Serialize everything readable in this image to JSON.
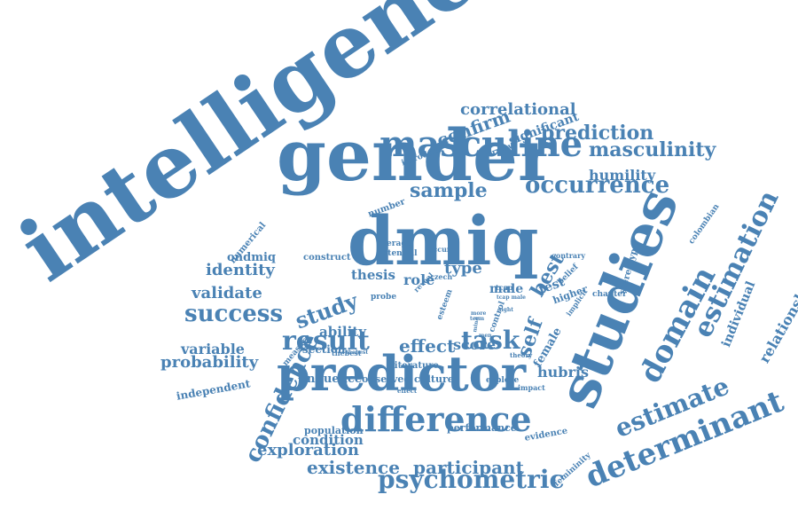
{
  "color": "#4a82b4",
  "words": [
    "intelligence",
    "gender",
    "dmiq",
    "predictor",
    "studies",
    "masculine",
    "difference",
    "determinant",
    "domain",
    "estimation",
    "psychometric",
    "occurrence",
    "sample",
    "result",
    "task",
    "estimate",
    "confidence",
    "success",
    "study",
    "prediction",
    "masculinity",
    "confirm",
    "correlational",
    "humility",
    "existence",
    "participant",
    "exploration",
    "probability",
    "variable",
    "validate",
    "identity",
    "ability",
    "effect",
    "self",
    "type",
    "score",
    "role",
    "best",
    "hubris",
    "relationship",
    "individual",
    "thesis",
    "section",
    "influence",
    "population",
    "condition",
    "performance",
    "independent",
    "ondmiq",
    "significant",
    "male",
    "test",
    "female",
    "culture",
    "observed",
    "literature",
    "explore",
    "evidence",
    "femininity",
    "higher",
    "chapter",
    "stereotype",
    "colombian",
    "belief",
    "numerical",
    "number",
    "construct",
    "average",
    "potential",
    "introduce",
    "overview",
    "measure",
    "thebest",
    "probe",
    "reveal",
    "czech",
    "tcap",
    "tcap male",
    "more",
    "term",
    "mind",
    "control",
    "sight",
    "esteem",
    "implicit",
    "theory",
    "impact",
    "contrary",
    "occur",
    "men",
    "effect",
    "thebest"
  ]
}
